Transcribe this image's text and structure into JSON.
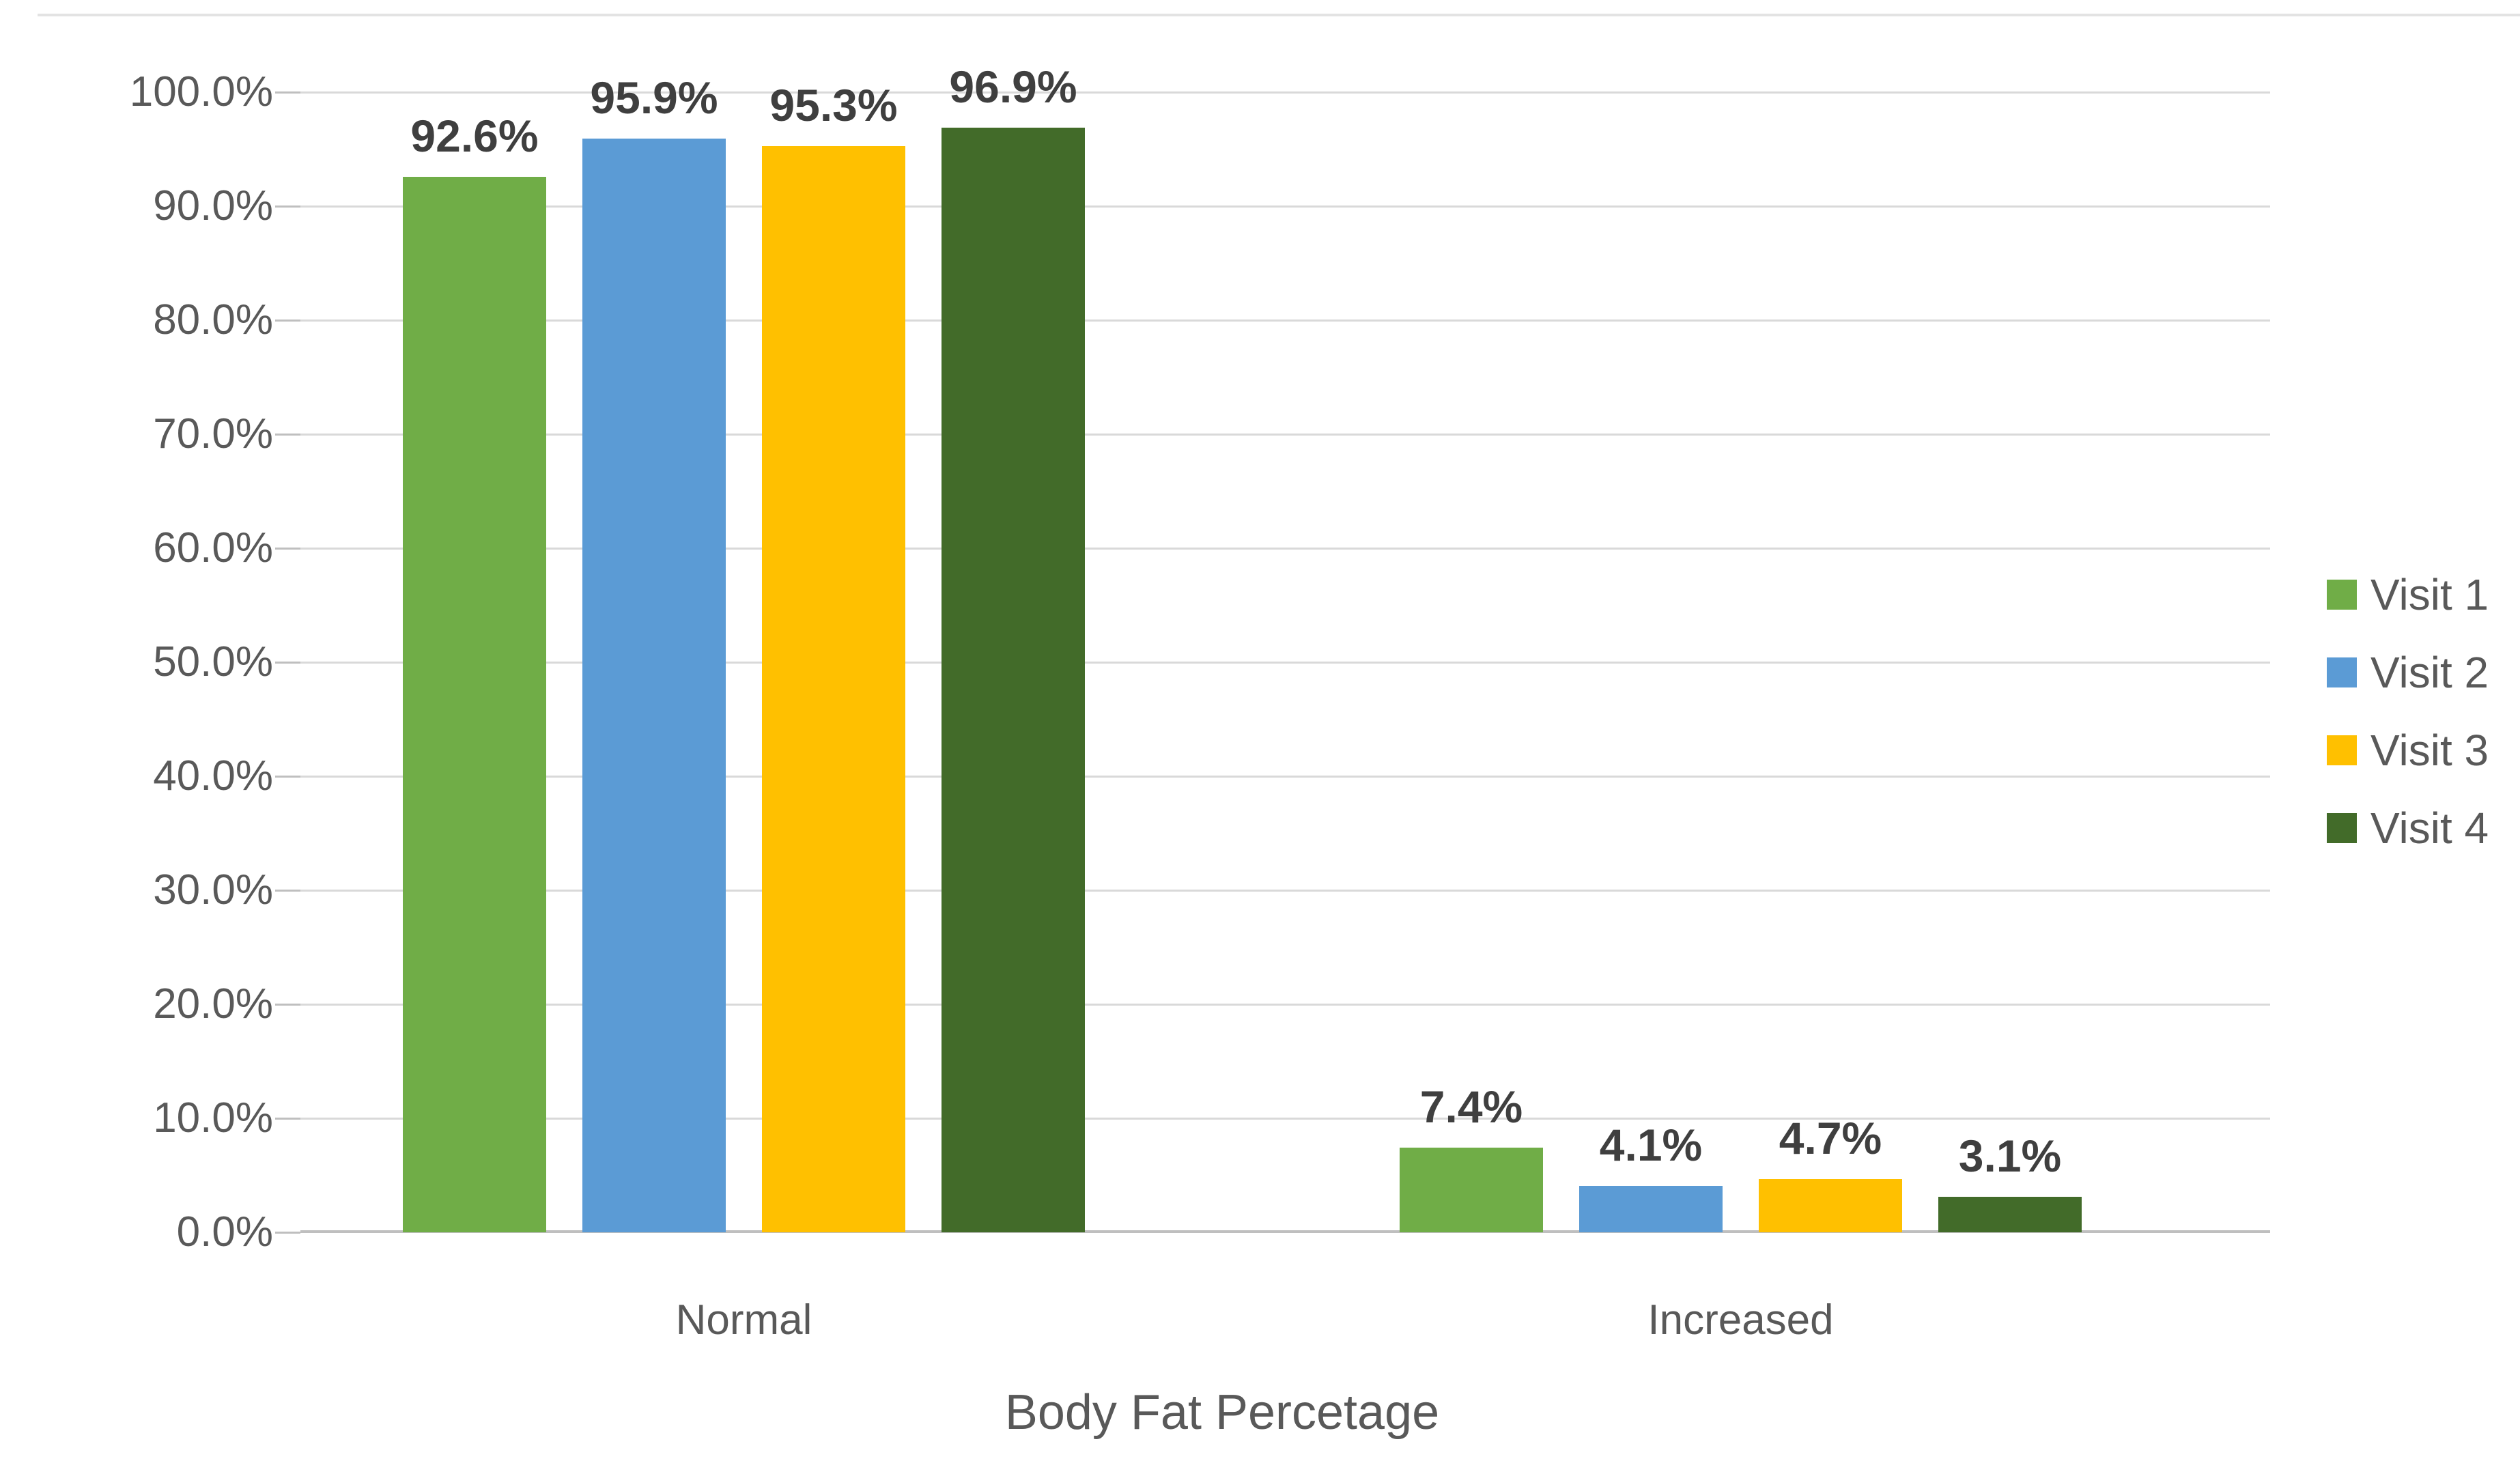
{
  "chart_data": {
    "type": "bar",
    "title": "",
    "xlabel": "Body Fat Percetage",
    "ylabel": "",
    "categories": [
      "Normal",
      "Increased"
    ],
    "series": [
      {
        "name": "Visit 1",
        "color": "#70AD47",
        "values": [
          92.6,
          7.4
        ],
        "data_labels": [
          "92.6%",
          "7.4%"
        ]
      },
      {
        "name": "Visit 2",
        "color": "#5B9BD5",
        "values": [
          95.9,
          4.1
        ],
        "data_labels": [
          "95.9%",
          "4.1%"
        ]
      },
      {
        "name": "Visit 3",
        "color": "#FFC000",
        "values": [
          95.3,
          4.7
        ],
        "data_labels": [
          "95.3%",
          "4.7%"
        ]
      },
      {
        "name": "Visit 4",
        "color": "#426B29",
        "values": [
          96.9,
          3.1
        ],
        "data_labels": [
          "96.9%",
          "3.1%"
        ]
      }
    ],
    "ylim": [
      0,
      100
    ],
    "ytick_step": 10,
    "ytick_labels": [
      "0.0%",
      "10.0%",
      "20.0%",
      "30.0%",
      "40.0%",
      "50.0%",
      "60.0%",
      "70.0%",
      "80.0%",
      "90.0%",
      "100.0%"
    ],
    "grid": true,
    "legend_position": "right"
  },
  "colors": {
    "background": "#FFFFFF",
    "gridline": "#D9D9D9",
    "axis_line": "#BFBFBF",
    "tick_text": "#595959",
    "data_label_text": "#3F3F3F"
  }
}
